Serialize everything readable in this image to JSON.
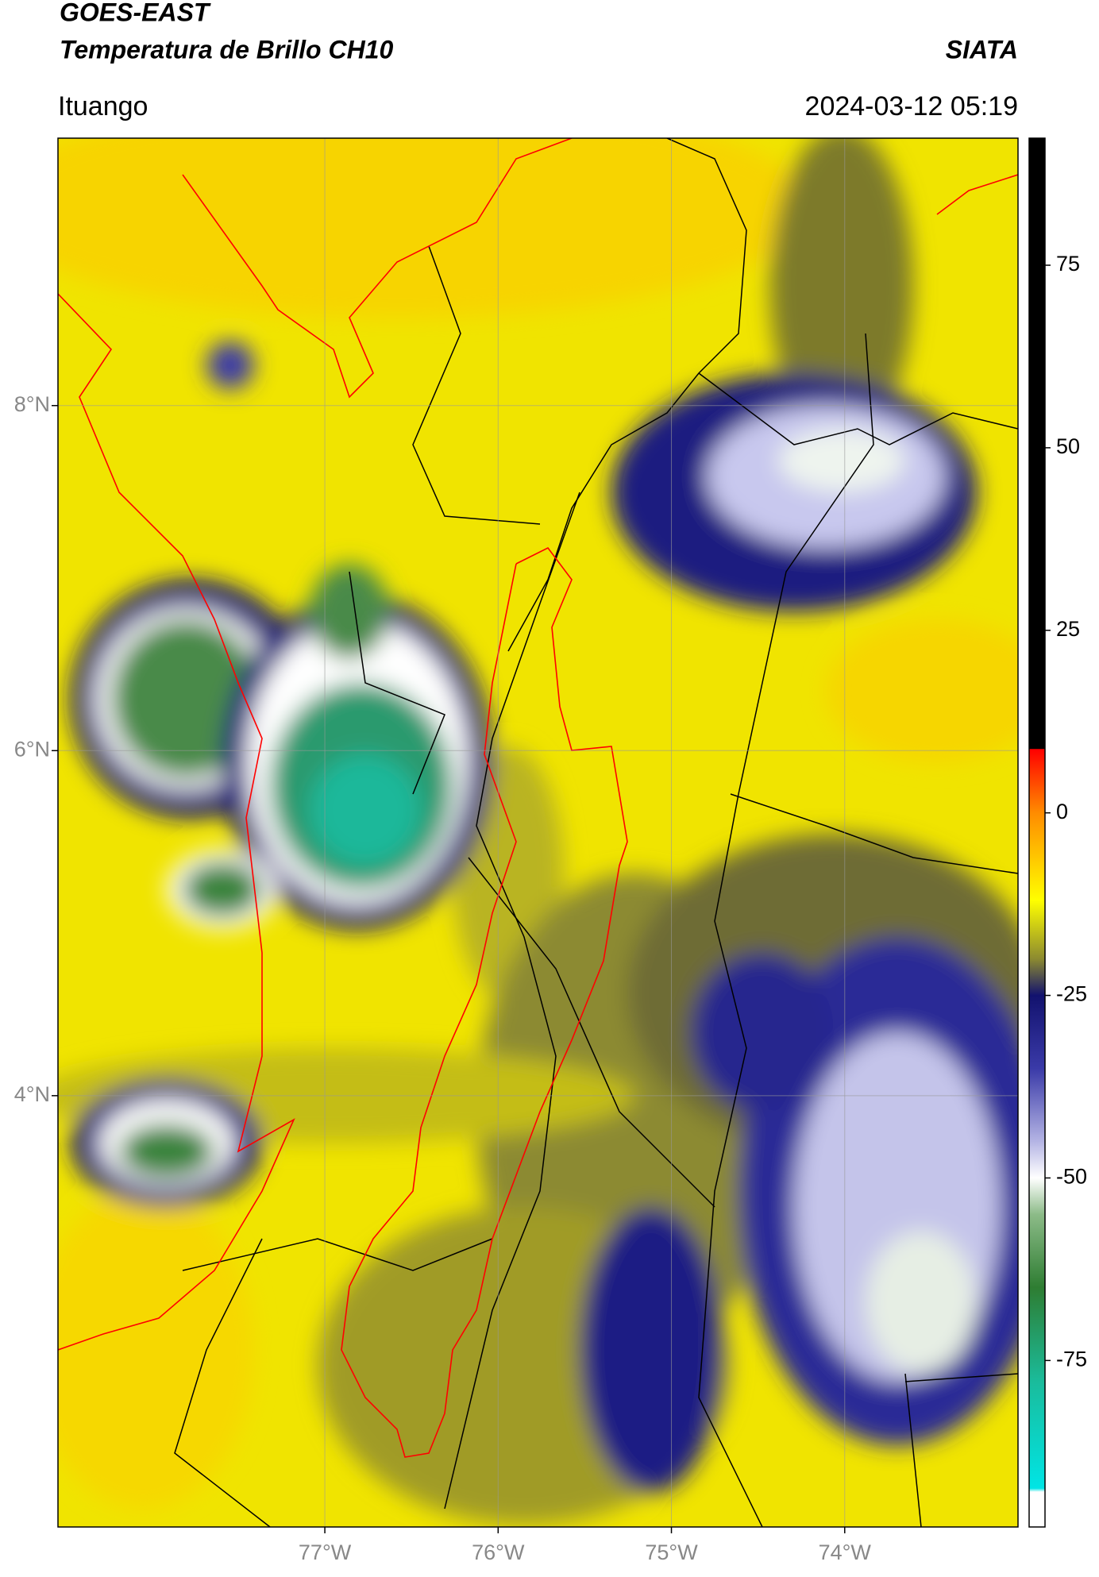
{
  "header": {
    "satellite": "GOES-EAST",
    "product": "Temperatura de Brillo CH10",
    "brand": "SIATA",
    "location": "Ituango",
    "timestamp": "2024-03-12 05:19"
  },
  "map": {
    "lonlim": [
      -78.54,
      -73.0
    ],
    "latlim": [
      1.5,
      9.55
    ],
    "grid": true,
    "xticks": [
      {
        "value": -77,
        "label": "77°W"
      },
      {
        "value": -76,
        "label": "76°W"
      },
      {
        "value": -75,
        "label": "75°W"
      },
      {
        "value": -74,
        "label": "74°W"
      }
    ],
    "yticks": [
      {
        "value": 8,
        "label": "8°N"
      },
      {
        "value": 6,
        "label": "6°N"
      },
      {
        "value": 4,
        "label": "4°N"
      }
    ]
  },
  "colorbar": {
    "lim": [
      -97.8,
      92.4
    ],
    "ticks": [
      75,
      50,
      25,
      0,
      -25,
      -50,
      -75
    ],
    "stops": [
      {
        "value": 92.4,
        "color": "#000000"
      },
      {
        "value": 8.8,
        "color": "#000000"
      },
      {
        "value": 8.7,
        "color": "#ff0000"
      },
      {
        "value": 0,
        "color": "#ff8c00"
      },
      {
        "value": -12,
        "color": "#ffff00"
      },
      {
        "value": -20,
        "color": "#8c8a30"
      },
      {
        "value": -25,
        "color": "#12126e"
      },
      {
        "value": -35,
        "color": "#3a3aa8"
      },
      {
        "value": -45,
        "color": "#b4b4e4"
      },
      {
        "value": -50,
        "color": "#ffffff"
      },
      {
        "value": -55,
        "color": "#8cbb88"
      },
      {
        "value": -65,
        "color": "#2e7d32"
      },
      {
        "value": -78,
        "color": "#1abc9c"
      },
      {
        "value": -92.5,
        "color": "#00e5e5"
      },
      {
        "value": -93,
        "color": "#ffffff"
      },
      {
        "value": -97.8,
        "color": "#ffffff"
      }
    ]
  }
}
